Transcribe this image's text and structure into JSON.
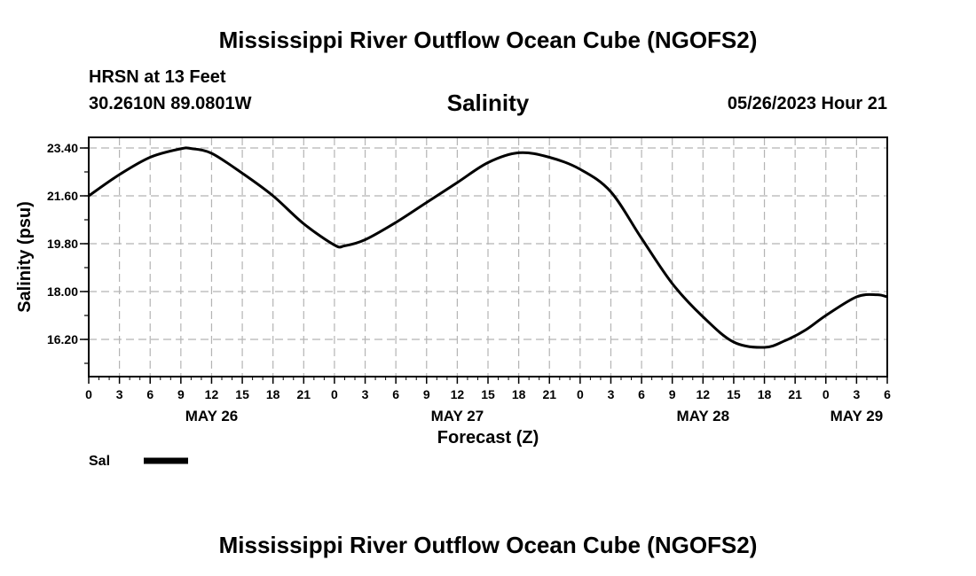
{
  "header": {
    "title": "Mississippi River Outflow Ocean Cube (NGOFS2)",
    "station": "HRSN at 13 Feet",
    "coords": "30.2610N  89.0801W",
    "chart_title": "Salinity",
    "datetime": "05/26/2023 Hour 21"
  },
  "footer": {
    "title": "Mississippi River Outflow Ocean Cube (NGOFS2)"
  },
  "chart_data": {
    "type": "line",
    "title": "Salinity",
    "xlabel": "Forecast (Z)",
    "ylabel": "Salinity (psu)",
    "xlim": [
      0,
      78
    ],
    "ylim": [
      14.8,
      23.8
    ],
    "grid": true,
    "y_ticks": [
      "16.20",
      "18.00",
      "19.80",
      "21.60",
      "23.40"
    ],
    "x_ticks": [
      "0",
      "3",
      "6",
      "9",
      "12",
      "15",
      "18",
      "21",
      "0",
      "3",
      "6",
      "9",
      "12",
      "15",
      "18",
      "21",
      "0",
      "3",
      "6",
      "9",
      "12",
      "15",
      "18",
      "21",
      "0",
      "3",
      "6"
    ],
    "day_labels": [
      {
        "label": "MAY 26",
        "hour": 12
      },
      {
        "label": "MAY 27",
        "hour": 36
      },
      {
        "label": "MAY 28",
        "hour": 60
      },
      {
        "label": "MAY 29",
        "hour": 75
      }
    ],
    "legend": {
      "position": "bottom-left",
      "entries": [
        "Sal"
      ]
    },
    "series": [
      {
        "name": "Sal",
        "x": [
          0,
          3,
          6,
          9,
          10,
          12,
          15,
          18,
          21,
          24,
          25,
          27,
          30,
          33,
          36,
          39,
          42,
          45,
          48,
          51,
          54,
          57,
          60,
          63,
          66,
          68,
          70,
          72,
          75,
          77,
          78
        ],
        "y": [
          21.6,
          22.4,
          23.05,
          23.37,
          23.38,
          23.2,
          22.45,
          21.6,
          20.55,
          19.75,
          19.72,
          19.95,
          20.6,
          21.35,
          22.1,
          22.85,
          23.22,
          23.05,
          22.6,
          21.75,
          20.0,
          18.3,
          17.05,
          16.1,
          15.9,
          16.15,
          16.55,
          17.1,
          17.8,
          17.88,
          17.8
        ]
      }
    ]
  }
}
